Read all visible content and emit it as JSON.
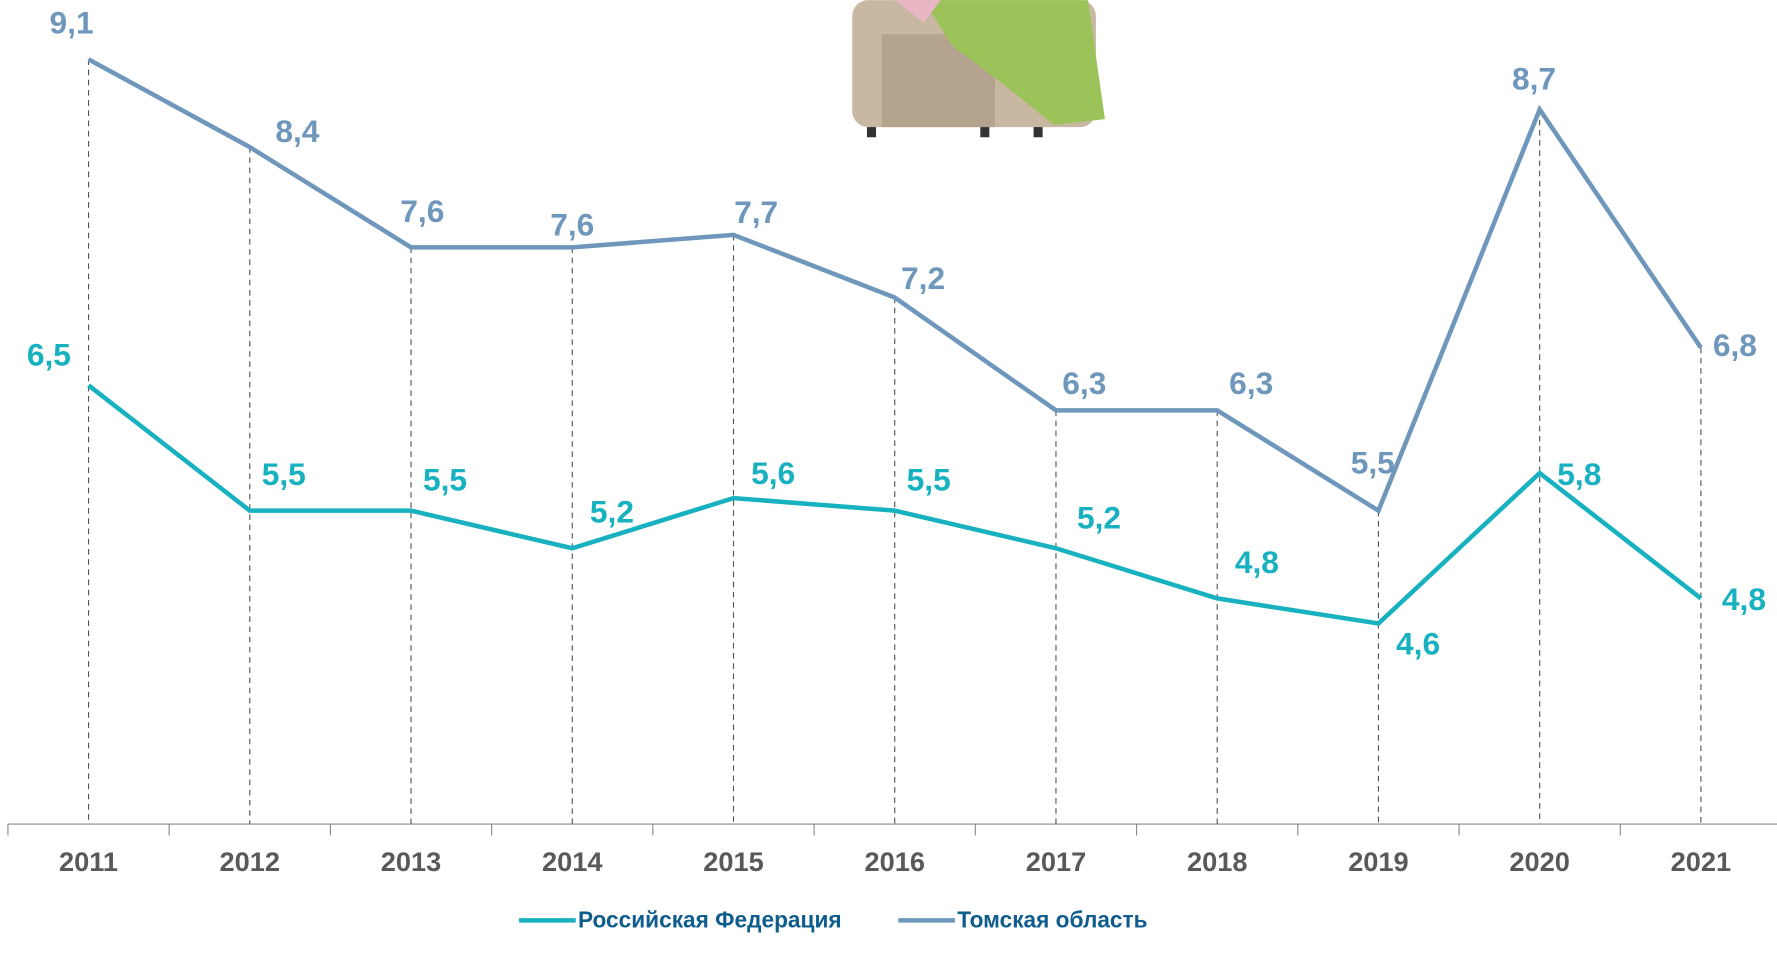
{
  "chart_data": {
    "type": "line",
    "categories": [
      "2011",
      "2012",
      "2013",
      "2014",
      "2015",
      "2016",
      "2017",
      "2018",
      "2019",
      "2020",
      "2021"
    ],
    "series": [
      {
        "name": "Российская Федерация",
        "color": "#17b1c0",
        "values": [
          6.5,
          5.5,
          5.5,
          5.2,
          5.6,
          5.5,
          5.2,
          4.8,
          4.6,
          5.8,
          4.8
        ],
        "value_labels": [
          "6,5",
          "5,5",
          "5,5",
          "5,2",
          "5,6",
          "5,5",
          "5,2",
          "4,8",
          "4,6",
          "5,8",
          "4,8"
        ]
      },
      {
        "name": "Томская область",
        "color": "#6e97bb",
        "values": [
          9.1,
          8.4,
          7.6,
          7.6,
          7.7,
          7.2,
          6.3,
          6.3,
          5.5,
          8.7,
          6.8
        ],
        "value_labels": [
          "9,1",
          "8,4",
          "7,6",
          "7,6",
          "7,7",
          "7,2",
          "6,3",
          "6,3",
          "5,5",
          "8,7",
          "6,8"
        ]
      }
    ],
    "ylim": [
      3,
      9.5
    ],
    "legend": "bottom"
  }
}
